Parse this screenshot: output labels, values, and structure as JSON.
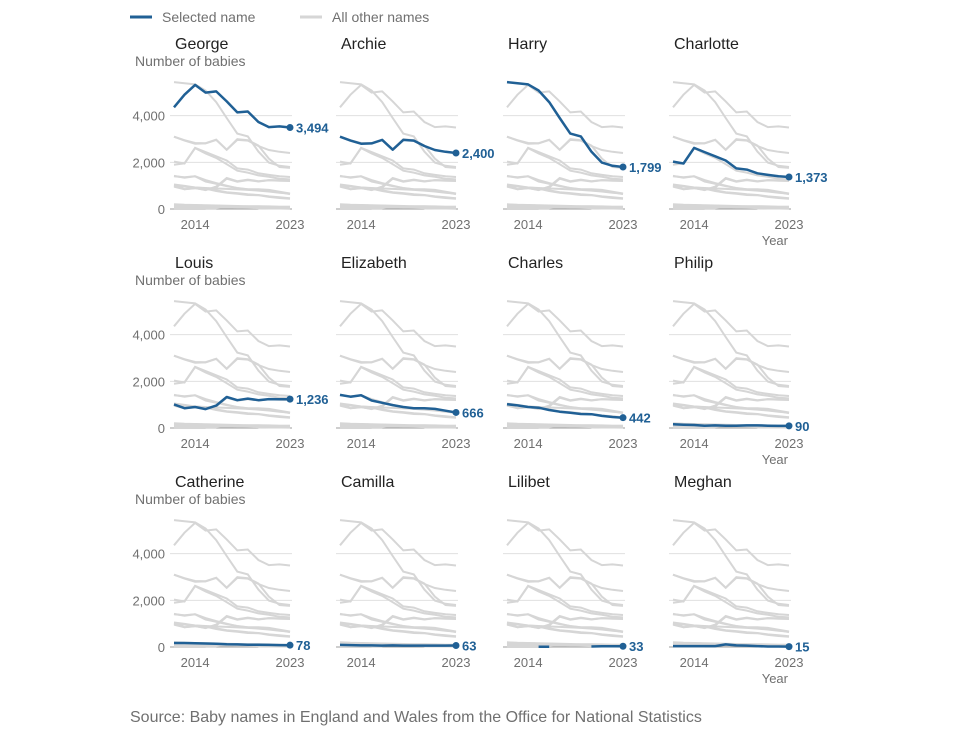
{
  "legend": {
    "selected": "Selected name",
    "others": "All other names"
  },
  "colors": {
    "selected": "#206095",
    "other": "#d6d6d6",
    "grid": "#e0e0e0",
    "text": "#707070"
  },
  "source": "Source: Baby names in England and Wales from the Office for National Statistics",
  "chart_data": {
    "type": "line",
    "small_multiples": true,
    "x": [
      2012,
      2013,
      2014,
      2015,
      2016,
      2017,
      2018,
      2019,
      2020,
      2021,
      2022,
      2023
    ],
    "x_ticks": [
      "2014",
      "2023"
    ],
    "y_ticks": [
      "0",
      "2,000",
      "4,000"
    ],
    "ylim": [
      0,
      5700
    ],
    "ylabel": "Number of babies",
    "xlabel": "Year",
    "grid": true,
    "series": [
      {
        "name": "George",
        "end_label": "3,494",
        "values": [
          4359,
          4900,
          5320,
          4990,
          5040,
          4610,
          4140,
          4180,
          3730,
          3510,
          3540,
          3494
        ]
      },
      {
        "name": "Archie",
        "end_label": "2,400",
        "values": [
          3100,
          2930,
          2800,
          2810,
          2960,
          2540,
          2960,
          2930,
          2700,
          2530,
          2450,
          2400
        ]
      },
      {
        "name": "Harry",
        "end_label": "1,799",
        "values": [
          5440,
          5390,
          5340,
          5080,
          4580,
          3900,
          3230,
          3110,
          2460,
          1990,
          1850,
          1799
        ]
      },
      {
        "name": "Charlotte",
        "end_label": "1,373",
        "values": [
          2030,
          1950,
          2620,
          2440,
          2260,
          2080,
          1740,
          1690,
          1530,
          1460,
          1400,
          1373
        ]
      },
      {
        "name": "Louis",
        "end_label": "1,236",
        "values": [
          1010,
          850,
          900,
          810,
          960,
          1330,
          1190,
          1260,
          1190,
          1240,
          1230,
          1236
        ]
      },
      {
        "name": "Elizabeth",
        "end_label": "666",
        "values": [
          1420,
          1340,
          1400,
          1180,
          1080,
          980,
          900,
          850,
          850,
          820,
          740,
          666
        ]
      },
      {
        "name": "Charles",
        "end_label": "442",
        "values": [
          1020,
          970,
          900,
          870,
          770,
          700,
          650,
          600,
          590,
          520,
          470,
          442
        ]
      },
      {
        "name": "Philip",
        "end_label": "90",
        "values": [
          160,
          140,
          130,
          100,
          110,
          100,
          100,
          110,
          110,
          100,
          90,
          90
        ]
      },
      {
        "name": "Catherine",
        "end_label": "78",
        "values": [
          170,
          170,
          160,
          150,
          140,
          120,
          110,
          100,
          100,
          90,
          80,
          78
        ]
      },
      {
        "name": "Camilla",
        "end_label": "63",
        "values": [
          90,
          80,
          70,
          70,
          60,
          70,
          60,
          60,
          60,
          60,
          60,
          63
        ]
      },
      {
        "name": "Lilibet",
        "end_label": "33",
        "values": [
          null,
          null,
          null,
          10,
          10,
          null,
          null,
          null,
          20,
          30,
          30,
          33
        ]
      },
      {
        "name": "Meghan",
        "end_label": "15",
        "values": [
          40,
          40,
          40,
          40,
          40,
          110,
          70,
          60,
          40,
          20,
          20,
          15
        ]
      }
    ],
    "background_series": [
      {
        "values": [
          1900,
          1960,
          2610,
          2380,
          2190,
          1920,
          1640,
          1560,
          1440,
          1380,
          1300,
          1270
        ]
      },
      {
        "values": [
          3100,
          2950,
          2830,
          2820,
          2970,
          2540,
          2990,
          2950,
          2720,
          2160,
          1800,
          1760
        ]
      },
      {
        "values": [
          1000,
          960,
          920,
          900,
          880,
          860,
          840,
          820,
          790,
          750,
          700,
          660
        ]
      },
      {
        "values": [
          960,
          850,
          890,
          820,
          920,
          1300,
          1170,
          1240,
          1180,
          1230,
          1210,
          1200
        ]
      },
      {
        "values": [
          1400,
          1360,
          1400,
          1240,
          1110,
          1000,
          890,
          840,
          830,
          790,
          720,
          640
        ]
      },
      {
        "values": [
          1050,
          990,
          920,
          890,
          800,
          720,
          680,
          630,
          600,
          540,
          500,
          460
        ]
      },
      {
        "values": [
          200,
          180,
          170,
          160,
          150,
          140,
          130,
          120,
          120,
          110,
          100,
          100
        ]
      },
      {
        "values": [
          150,
          140,
          130,
          120,
          110,
          100,
          100,
          100,
          90,
          90,
          80,
          80
        ]
      },
      {
        "values": [
          100,
          90,
          90,
          80,
          80,
          80,
          70,
          70,
          70,
          60,
          60,
          60
        ]
      }
    ]
  }
}
